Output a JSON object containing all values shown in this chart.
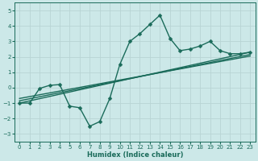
{
  "bg_color": "#cce8e8",
  "grid_color": "#b8d4d4",
  "line_color": "#1a6b5a",
  "xlabel": "Humidex (Indice chaleur)",
  "xlim": [
    -0.5,
    23.5
  ],
  "ylim": [
    -3.5,
    5.5
  ],
  "yticks": [
    -3,
    -2,
    -1,
    0,
    1,
    2,
    3,
    4,
    5
  ],
  "xticks": [
    0,
    1,
    2,
    3,
    4,
    5,
    6,
    7,
    8,
    9,
    10,
    11,
    12,
    13,
    14,
    15,
    16,
    17,
    18,
    19,
    20,
    21,
    22,
    23
  ],
  "series1_x": [
    0,
    1,
    2,
    3,
    4,
    5,
    6,
    7,
    8,
    9,
    10,
    11,
    12,
    13,
    14,
    15,
    16,
    17,
    18,
    19,
    20,
    21,
    22,
    23
  ],
  "series1_y": [
    -1,
    -1,
    -0.05,
    0.15,
    0.2,
    -1.2,
    -1.3,
    -2.5,
    -2.2,
    -0.7,
    1.5,
    3.0,
    3.5,
    4.1,
    4.7,
    3.2,
    2.4,
    2.5,
    2.7,
    3.0,
    2.4,
    2.2,
    2.2,
    2.3
  ],
  "trend1_x": [
    0,
    23
  ],
  "trend1_y": [
    -1.0,
    2.3
  ],
  "trend2_x": [
    0,
    23
  ],
  "trend2_y": [
    -0.85,
    2.15
  ],
  "trend3_x": [
    0,
    23
  ],
  "trend3_y": [
    -0.7,
    2.05
  ],
  "marker": "D",
  "markersize": 2.5,
  "linewidth": 1.0,
  "tick_fontsize": 5,
  "xlabel_fontsize": 6
}
